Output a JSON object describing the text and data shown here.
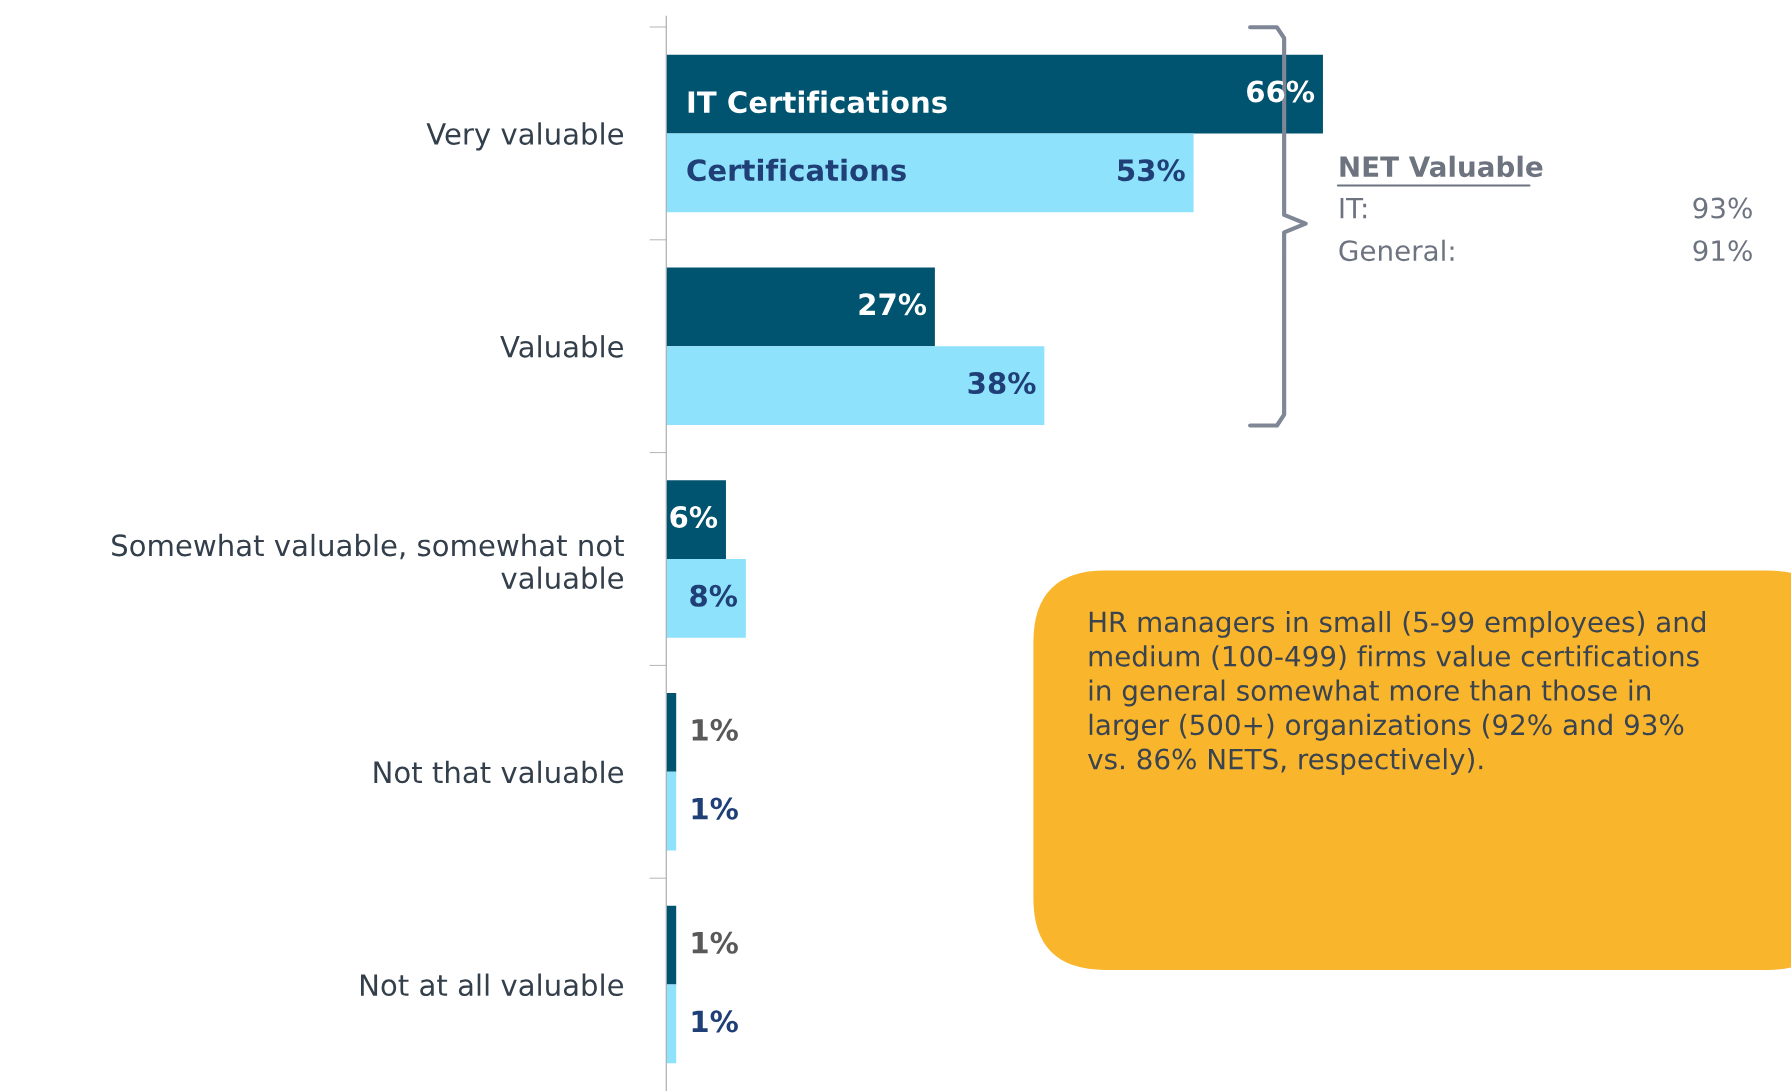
{
  "chart_data": {
    "type": "bar",
    "orientation": "horizontal",
    "categories": [
      "Very valuable",
      "Valuable",
      "Somewhat valuable, somewhat not valuable",
      "Not that valuable",
      "Not at all valuable"
    ],
    "series": [
      {
        "name": "IT Certifications",
        "color": "#00546f",
        "values": [
          66,
          27,
          6,
          1,
          1
        ],
        "value_labels": [
          "66%",
          "27%",
          "6%",
          "1%",
          "1%"
        ]
      },
      {
        "name": "Certifications",
        "color": "#8ee2fc",
        "values": [
          53,
          38,
          8,
          1,
          1
        ],
        "value_labels": [
          "53%",
          "38%",
          "8%",
          "1%",
          "1%"
        ]
      }
    ],
    "grid": false,
    "legend": false,
    "annotations": [
      "NET Valuable",
      "IT: 93%",
      "General: 91%",
      "HR managers in small (5-99 employees) and medium (100-499) firms value certifications in general somewhat more than those in larger (500+) organizations (92% and 93% vs. 86% NETS, respectively)."
    ]
  }
}
